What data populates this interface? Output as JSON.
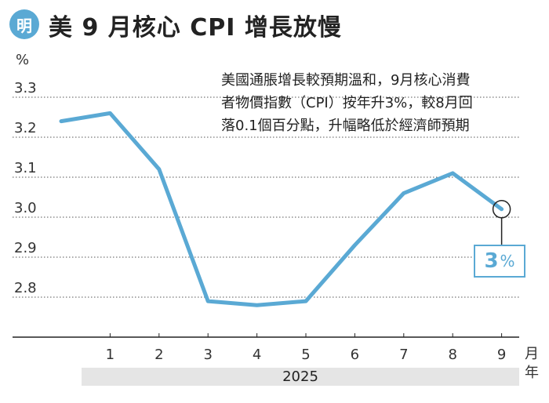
{
  "header": {
    "logo_text": "明",
    "title": "美 9 月核心 CPI 增長放慢"
  },
  "note_lines": [
    "美國通脹增長較預期溫和，9月核心消費",
    "者物價指數（CPI）按年升3%，較8月回",
    "落0.1個百分點，升幅略低於經濟師預期"
  ],
  "callout": {
    "value": "3",
    "unit": "%"
  },
  "colors": {
    "line": "#5aa9d4",
    "grid": "#555555",
    "year_bar": "#e5e5e5"
  },
  "chart_data": {
    "type": "line",
    "title": "美 9 月核心 CPI 增長放慢",
    "xlabel": "月 年",
    "ylabel": "%",
    "year": "2025",
    "x_unit_top": "月",
    "x_unit_bottom": "年",
    "ylim": [
      2.7,
      3.3
    ],
    "yticks": [
      "3.3",
      "3.2",
      "3.1",
      "3.0",
      "2.9",
      "2.8"
    ],
    "categories": [
      "1",
      "2",
      "3",
      "4",
      "5",
      "6",
      "7",
      "8",
      "9"
    ],
    "series": [
      {
        "values": [
          3.24,
          3.26,
          3.12,
          2.79,
          2.78,
          2.79,
          2.93,
          3.06,
          3.11,
          3.02
        ],
        "x": [
          "0",
          "1",
          "2",
          "3",
          "4",
          "5",
          "6",
          "7",
          "8",
          "9"
        ]
      }
    ],
    "grid": true
  }
}
